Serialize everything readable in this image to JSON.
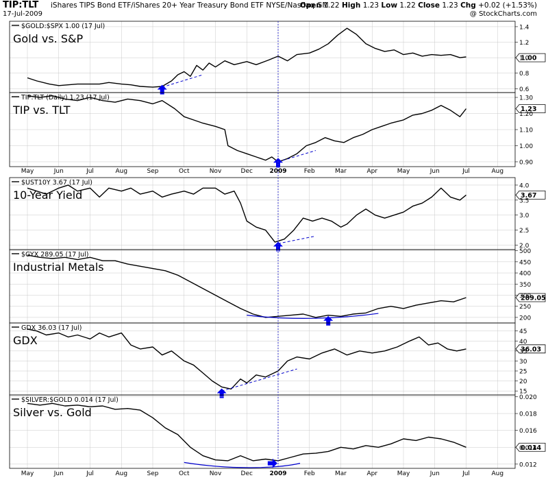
{
  "header": {
    "symbol": "TIP:TLT",
    "description": "iShares TIPS Bond ETF/iShares 20+ Year Treasury Bond ETF  NYSE/Nasdaq GM",
    "date": "17-Jul-2009",
    "open_label": "Open",
    "open": "1.22",
    "high_label": "High",
    "high": "1.23",
    "low_label": "Low",
    "low": "1.22",
    "close_label": "Close",
    "close": "1.23",
    "chg_label": "Chg",
    "chg": "+0.02 (+1.53%)",
    "logo": "@ StockCharts.com"
  },
  "colors": {
    "price_line": "#000000",
    "annotation": "#0000cc",
    "arrow": "#0000ee",
    "grid": "#c8c8c8",
    "year_marker": "#3333cc"
  },
  "chart_data": [
    {
      "type": "line",
      "legend": "$GOLD:$SPX 1.00 (17 Jul)",
      "title": "Gold vs. S&P",
      "yticks": [
        "0.6",
        "0.8",
        "1.0",
        "1.2",
        "1.4"
      ],
      "ylim": [
        0.55,
        1.47
      ],
      "last_value": "1.00",
      "x_months": [
        "May",
        "Jun",
        "Jul",
        "Aug",
        "Sep",
        "Oct",
        "Nov",
        "Dec",
        "2009",
        "Feb",
        "Mar",
        "Apr",
        "May",
        "Jun",
        "Jul",
        "Aug"
      ],
      "series_points": [
        [
          0,
          0.74
        ],
        [
          0.3,
          0.7
        ],
        [
          0.7,
          0.66
        ],
        [
          1.0,
          0.64
        ],
        [
          1.3,
          0.65
        ],
        [
          1.6,
          0.66
        ],
        [
          2.0,
          0.66
        ],
        [
          2.3,
          0.66
        ],
        [
          2.6,
          0.68
        ],
        [
          3.0,
          0.66
        ],
        [
          3.3,
          0.65
        ],
        [
          3.6,
          0.63
        ],
        [
          4.0,
          0.62
        ],
        [
          4.3,
          0.63
        ],
        [
          4.6,
          0.7
        ],
        [
          4.8,
          0.78
        ],
        [
          5.0,
          0.82
        ],
        [
          5.2,
          0.76
        ],
        [
          5.4,
          0.9
        ],
        [
          5.6,
          0.84
        ],
        [
          5.8,
          0.93
        ],
        [
          6.0,
          0.88
        ],
        [
          6.3,
          0.96
        ],
        [
          6.6,
          0.91
        ],
        [
          7.0,
          0.95
        ],
        [
          7.3,
          0.91
        ],
        [
          7.7,
          0.97
        ],
        [
          8.0,
          1.02
        ],
        [
          8.3,
          0.96
        ],
        [
          8.6,
          1.04
        ],
        [
          9.0,
          1.06
        ],
        [
          9.3,
          1.11
        ],
        [
          9.6,
          1.18
        ],
        [
          9.9,
          1.29
        ],
        [
          10.2,
          1.38
        ],
        [
          10.5,
          1.3
        ],
        [
          10.8,
          1.18
        ],
        [
          11.1,
          1.12
        ],
        [
          11.4,
          1.08
        ],
        [
          11.7,
          1.1
        ],
        [
          12.0,
          1.04
        ],
        [
          12.3,
          1.06
        ],
        [
          12.6,
          1.02
        ],
        [
          12.9,
          1.04
        ],
        [
          13.2,
          1.03
        ],
        [
          13.5,
          1.04
        ],
        [
          13.8,
          1.0
        ],
        [
          14.0,
          1.01
        ]
      ],
      "trendline": [
        [
          4.3,
          0.62
        ],
        [
          5.6,
          0.78
        ]
      ],
      "arrows": [
        {
          "x": 4.3,
          "y": 0.58,
          "direction": "up"
        }
      ]
    },
    {
      "type": "line",
      "legend": "TIP:TLT (Daily) 1.23 (17 Jul)",
      "title": "TIP vs. TLT",
      "yticks": [
        "0.90",
        "1.00",
        "1.10",
        "1.20",
        "1.30"
      ],
      "ylim": [
        0.87,
        1.33
      ],
      "last_value": "1.23",
      "series_points": [
        [
          0,
          1.31
        ],
        [
          0.4,
          1.3
        ],
        [
          0.8,
          1.31
        ],
        [
          1.2,
          1.29
        ],
        [
          1.6,
          1.28
        ],
        [
          2.0,
          1.3
        ],
        [
          2.4,
          1.28
        ],
        [
          2.8,
          1.27
        ],
        [
          3.2,
          1.29
        ],
        [
          3.6,
          1.28
        ],
        [
          4.0,
          1.26
        ],
        [
          4.3,
          1.28
        ],
        [
          4.7,
          1.23
        ],
        [
          5.0,
          1.18
        ],
        [
          5.3,
          1.16
        ],
        [
          5.6,
          1.14
        ],
        [
          6.0,
          1.12
        ],
        [
          6.3,
          1.1
        ],
        [
          6.4,
          1.0
        ],
        [
          6.7,
          0.97
        ],
        [
          7.0,
          0.95
        ],
        [
          7.3,
          0.93
        ],
        [
          7.6,
          0.91
        ],
        [
          7.8,
          0.93
        ],
        [
          8.0,
          0.9
        ],
        [
          8.3,
          0.92
        ],
        [
          8.6,
          0.95
        ],
        [
          8.9,
          1.0
        ],
        [
          9.2,
          1.02
        ],
        [
          9.5,
          1.05
        ],
        [
          9.8,
          1.03
        ],
        [
          10.1,
          1.02
        ],
        [
          10.4,
          1.05
        ],
        [
          10.7,
          1.07
        ],
        [
          11.0,
          1.1
        ],
        [
          11.3,
          1.12
        ],
        [
          11.6,
          1.14
        ],
        [
          12.0,
          1.16
        ],
        [
          12.3,
          1.19
        ],
        [
          12.6,
          1.2
        ],
        [
          12.9,
          1.22
        ],
        [
          13.2,
          1.25
        ],
        [
          13.5,
          1.22
        ],
        [
          13.8,
          1.18
        ],
        [
          14.0,
          1.23
        ]
      ],
      "trendline": [
        [
          8.0,
          0.9
        ],
        [
          9.2,
          0.97
        ]
      ],
      "arrows": [
        {
          "x": 8.0,
          "y": 0.89,
          "direction": "up"
        }
      ]
    },
    {
      "type": "line",
      "legend": "$UST10Y 3.67 (17 Jul)",
      "title": "10-Year Yield",
      "yticks": [
        "2.0",
        "2.5",
        "3.0",
        "3.5",
        "4.0"
      ],
      "ylim": [
        1.85,
        4.25
      ],
      "last_value": "3.67",
      "series_points": [
        [
          0,
          3.9
        ],
        [
          0.3,
          3.8
        ],
        [
          0.6,
          3.7
        ],
        [
          1.0,
          3.9
        ],
        [
          1.3,
          4.0
        ],
        [
          1.6,
          3.8
        ],
        [
          2.0,
          3.9
        ],
        [
          2.3,
          3.6
        ],
        [
          2.6,
          3.9
        ],
        [
          3.0,
          3.8
        ],
        [
          3.3,
          3.9
        ],
        [
          3.6,
          3.7
        ],
        [
          4.0,
          3.8
        ],
        [
          4.3,
          3.6
        ],
        [
          4.6,
          3.7
        ],
        [
          5.0,
          3.8
        ],
        [
          5.3,
          3.7
        ],
        [
          5.6,
          3.9
        ],
        [
          6.0,
          3.9
        ],
        [
          6.3,
          3.7
        ],
        [
          6.6,
          3.8
        ],
        [
          6.8,
          3.4
        ],
        [
          7.0,
          2.8
        ],
        [
          7.3,
          2.6
        ],
        [
          7.6,
          2.5
        ],
        [
          7.9,
          2.1
        ],
        [
          8.2,
          2.2
        ],
        [
          8.5,
          2.5
        ],
        [
          8.8,
          2.9
        ],
        [
          9.1,
          2.8
        ],
        [
          9.4,
          2.9
        ],
        [
          9.7,
          2.8
        ],
        [
          10.0,
          2.6
        ],
        [
          10.2,
          2.7
        ],
        [
          10.5,
          3.0
        ],
        [
          10.8,
          3.2
        ],
        [
          11.1,
          3.0
        ],
        [
          11.4,
          2.9
        ],
        [
          11.7,
          3.0
        ],
        [
          12.0,
          3.1
        ],
        [
          12.3,
          3.3
        ],
        [
          12.6,
          3.4
        ],
        [
          12.9,
          3.6
        ],
        [
          13.2,
          3.9
        ],
        [
          13.5,
          3.6
        ],
        [
          13.8,
          3.5
        ],
        [
          14.0,
          3.67
        ]
      ],
      "trendline": [
        [
          8.0,
          2.05
        ],
        [
          9.2,
          2.3
        ]
      ],
      "arrows": [
        {
          "x": 8.0,
          "y": 1.93,
          "direction": "up"
        }
      ]
    },
    {
      "type": "line",
      "legend": "$GYX 289.05 (17 Jul)",
      "title": "Industrial Metals",
      "yticks": [
        "200",
        "250",
        "300",
        "350",
        "400",
        "450",
        "500"
      ],
      "ylim": [
        175,
        505
      ],
      "last_value": "289.05",
      "series_points": [
        [
          0,
          480
        ],
        [
          0.4,
          470
        ],
        [
          0.8,
          465
        ],
        [
          1.2,
          470
        ],
        [
          1.6,
          460
        ],
        [
          2.0,
          470
        ],
        [
          2.4,
          455
        ],
        [
          2.8,
          455
        ],
        [
          3.2,
          440
        ],
        [
          3.6,
          430
        ],
        [
          4.0,
          420
        ],
        [
          4.4,
          410
        ],
        [
          4.8,
          390
        ],
        [
          5.2,
          360
        ],
        [
          5.6,
          330
        ],
        [
          6.0,
          300
        ],
        [
          6.4,
          270
        ],
        [
          6.8,
          240
        ],
        [
          7.2,
          215
        ],
        [
          7.6,
          200
        ],
        [
          8.0,
          205
        ],
        [
          8.4,
          210
        ],
        [
          8.8,
          215
        ],
        [
          9.2,
          200
        ],
        [
          9.6,
          210
        ],
        [
          10.0,
          205
        ],
        [
          10.4,
          215
        ],
        [
          10.8,
          220
        ],
        [
          11.2,
          240
        ],
        [
          11.6,
          250
        ],
        [
          12.0,
          240
        ],
        [
          12.4,
          255
        ],
        [
          12.8,
          265
        ],
        [
          13.2,
          275
        ],
        [
          13.6,
          270
        ],
        [
          14.0,
          289
        ]
      ],
      "support_curve": [
        [
          7.0,
          210
        ],
        [
          8.5,
          185
        ],
        [
          10.0,
          195
        ],
        [
          11.2,
          218
        ]
      ],
      "arrows": [
        {
          "x": 9.6,
          "y": 182,
          "direction": "up"
        }
      ]
    },
    {
      "type": "line",
      "legend": "GDX 36.03 (17 Jul)",
      "title": "GDX",
      "yticks": [
        "15",
        "20",
        "25",
        "30",
        "35",
        "40",
        "45"
      ],
      "ylim": [
        13,
        49
      ],
      "last_value": "36.03",
      "series_points": [
        [
          0,
          46
        ],
        [
          0.3,
          45
        ],
        [
          0.6,
          43
        ],
        [
          1.0,
          44
        ],
        [
          1.3,
          42
        ],
        [
          1.6,
          43
        ],
        [
          2.0,
          41
        ],
        [
          2.3,
          44
        ],
        [
          2.6,
          42
        ],
        [
          3.0,
          44
        ],
        [
          3.3,
          38
        ],
        [
          3.6,
          36
        ],
        [
          4.0,
          37
        ],
        [
          4.3,
          33
        ],
        [
          4.6,
          35
        ],
        [
          5.0,
          30
        ],
        [
          5.3,
          28
        ],
        [
          5.6,
          24
        ],
        [
          5.9,
          20
        ],
        [
          6.2,
          17
        ],
        [
          6.5,
          16
        ],
        [
          6.8,
          21
        ],
        [
          7.0,
          19
        ],
        [
          7.3,
          23
        ],
        [
          7.6,
          22
        ],
        [
          8.0,
          25
        ],
        [
          8.3,
          30
        ],
        [
          8.6,
          32
        ],
        [
          9.0,
          31
        ],
        [
          9.4,
          34
        ],
        [
          9.8,
          36
        ],
        [
          10.2,
          33
        ],
        [
          10.6,
          35
        ],
        [
          11.0,
          34
        ],
        [
          11.4,
          35
        ],
        [
          11.8,
          37
        ],
        [
          12.2,
          40
        ],
        [
          12.5,
          42
        ],
        [
          12.8,
          38
        ],
        [
          13.1,
          39
        ],
        [
          13.4,
          36
        ],
        [
          13.7,
          35
        ],
        [
          14.0,
          36
        ]
      ],
      "trendline": [
        [
          6.2,
          15
        ],
        [
          8.6,
          26
        ]
      ],
      "arrows": [
        {
          "x": 6.2,
          "y": 13.5,
          "direction": "up"
        }
      ]
    },
    {
      "type": "line",
      "legend": "$SILVER:$GOLD 0.014 (17 Jul)",
      "title": "Silver vs. Gold",
      "yticks": [
        "0.012",
        "0.014",
        "0.016",
        "0.018",
        "0.020"
      ],
      "ylim": [
        0.0115,
        0.0202
      ],
      "last_value": "0.014",
      "series_points": [
        [
          0,
          0.0192
        ],
        [
          0.4,
          0.019
        ],
        [
          0.8,
          0.0192
        ],
        [
          1.2,
          0.0189
        ],
        [
          1.6,
          0.019
        ],
        [
          2.0,
          0.0188
        ],
        [
          2.4,
          0.0189
        ],
        [
          2.8,
          0.0185
        ],
        [
          3.2,
          0.0186
        ],
        [
          3.6,
          0.0184
        ],
        [
          4.0,
          0.0175
        ],
        [
          4.4,
          0.0163
        ],
        [
          4.8,
          0.0155
        ],
        [
          5.2,
          0.014
        ],
        [
          5.6,
          0.013
        ],
        [
          6.0,
          0.0125
        ],
        [
          6.4,
          0.0124
        ],
        [
          6.8,
          0.013
        ],
        [
          7.2,
          0.0124
        ],
        [
          7.6,
          0.0126
        ],
        [
          8.0,
          0.0124
        ],
        [
          8.4,
          0.0128
        ],
        [
          8.8,
          0.0132
        ],
        [
          9.2,
          0.0133
        ],
        [
          9.6,
          0.0135
        ],
        [
          10.0,
          0.014
        ],
        [
          10.4,
          0.0138
        ],
        [
          10.8,
          0.0142
        ],
        [
          11.2,
          0.014
        ],
        [
          11.6,
          0.0144
        ],
        [
          12.0,
          0.015
        ],
        [
          12.4,
          0.0148
        ],
        [
          12.8,
          0.0152
        ],
        [
          13.2,
          0.015
        ],
        [
          13.6,
          0.0146
        ],
        [
          14.0,
          0.014
        ]
      ],
      "support_curve": [
        [
          5.0,
          0.0122
        ],
        [
          6.5,
          0.0113
        ],
        [
          8.0,
          0.0115
        ],
        [
          8.7,
          0.0121
        ]
      ],
      "arrows": [
        {
          "x": 7.8,
          "y": 0.0121,
          "direction": "right"
        }
      ]
    }
  ]
}
